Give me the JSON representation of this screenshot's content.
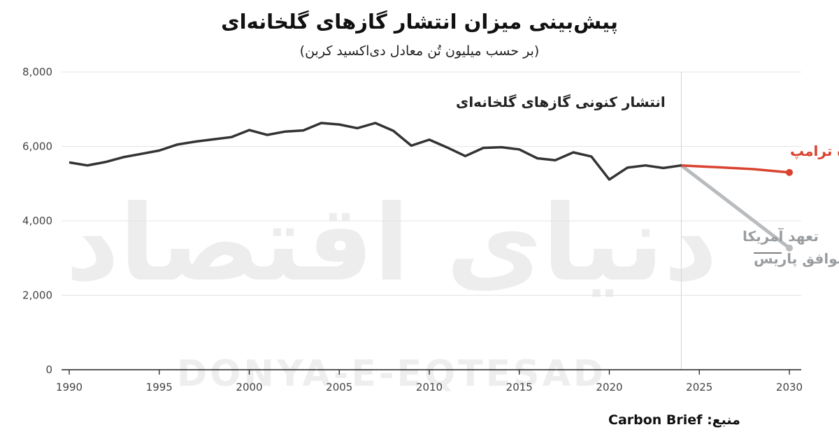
{
  "title": "پیش‌بینی میزان انتشار گازهای گلخانه‌ای",
  "subtitle": "(بر حسب میلیون تُن معادل دی‌اکسید کربن)",
  "source": {
    "label": "منبع:",
    "name": "Carbon Brief"
  },
  "watermark": {
    "latin": "DONYA-E-EQTESAD",
    "persian": "دنیای اقتصاد"
  },
  "chart_data": {
    "type": "line",
    "title": "پیش‌بینی میزان انتشار گازهای گلخانه‌ای",
    "subtitle": "(بر حسب میلیون تُن معادل دی‌اکسید کربن)",
    "xlabel": "",
    "ylabel": "",
    "xlim": [
      1990,
      2030
    ],
    "ylim": [
      0,
      8000
    ],
    "grid": true,
    "x_ticks": [
      1990,
      1995,
      2000,
      2005,
      2010,
      2015,
      2020,
      2025,
      2030
    ],
    "x_tick_labels": [
      "1990",
      "1995",
      "2000",
      "2005",
      "2010",
      "2015",
      "2020",
      "2025",
      "2030"
    ],
    "y_ticks": [
      0,
      2000,
      4000,
      6000,
      8000
    ],
    "y_tick_labels": [
      "0",
      "2,000",
      "4,000",
      "6,000",
      "8,000"
    ],
    "reference_line_x": 2024,
    "series": [
      {
        "name": "انتشار کنونی گازهای گلخانه‌ای",
        "color": "#333333",
        "x": [
          1990,
          1991,
          1992,
          1993,
          1994,
          1995,
          1996,
          1997,
          1998,
          1999,
          2000,
          2001,
          2002,
          2003,
          2004,
          2005,
          2006,
          2007,
          2008,
          2009,
          2010,
          2011,
          2012,
          2013,
          2014,
          2015,
          2016,
          2017,
          2018,
          2019,
          2020,
          2021,
          2022,
          2023,
          2024
        ],
        "y": [
          5570,
          5490,
          5580,
          5710,
          5800,
          5890,
          6050,
          6130,
          6190,
          6250,
          6440,
          6310,
          6400,
          6430,
          6630,
          6590,
          6490,
          6630,
          6420,
          6020,
          6180,
          5970,
          5740,
          5960,
          5980,
          5920,
          5680,
          5630,
          5840,
          5730,
          5110,
          5430,
          5490,
          5420,
          5490
        ]
      },
      {
        "name": "سیاست‌های دوره ترامپ",
        "color": "#d9432f",
        "x": [
          2024,
          2026,
          2028,
          2030
        ],
        "y": [
          5490,
          5440,
          5390,
          5300
        ]
      },
      {
        "name": "تعهد آمریکا در توافق پاریس",
        "color": "#b9bcbf",
        "x": [
          2024,
          2030
        ],
        "y": [
          5490,
          3270
        ]
      }
    ],
    "annotations": [
      {
        "text": "انتشار کنونی گازهای گلخانه‌ای",
        "color": "#222222"
      },
      {
        "text": "سیاست‌های دوره ترامپ",
        "color": "#d9432f"
      },
      {
        "text": [
          "تعهد آمریکا",
          "در توافق پاریس"
        ],
        "color": "#9a9d a0"
      }
    ]
  }
}
